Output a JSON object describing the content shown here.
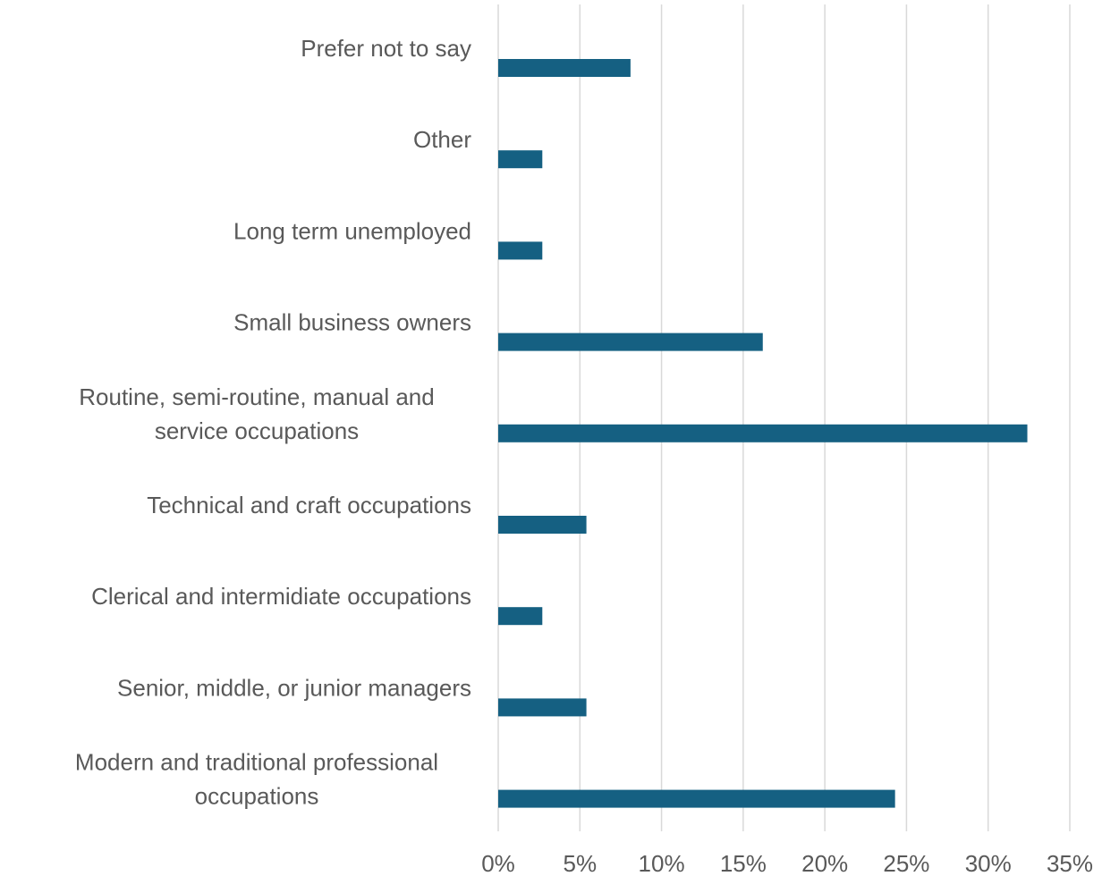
{
  "chart_data": {
    "type": "bar",
    "orientation": "horizontal",
    "categories": [
      "Prefer not to say",
      "Other",
      "Long term unemployed",
      "Small business owners",
      "Routine, semi-routine, manual and service occupations",
      "Technical and craft occupations",
      "Clerical and intermidiate occupations",
      "Senior, middle, or junior managers",
      "Modern and traditional professional occupations"
    ],
    "values": [
      8.1,
      2.7,
      2.7,
      16.2,
      32.4,
      5.4,
      2.7,
      5.4,
      24.3
    ],
    "color": "#156082",
    "xlim": [
      0,
      35
    ],
    "xticks": [
      {
        "value": 0,
        "label": "0%"
      },
      {
        "value": 5,
        "label": "5%"
      },
      {
        "value": 10,
        "label": "10%"
      },
      {
        "value": 15,
        "label": "15%"
      },
      {
        "value": 20,
        "label": "20%"
      },
      {
        "value": 25,
        "label": "25%"
      },
      {
        "value": 30,
        "label": "30%"
      },
      {
        "value": 35,
        "label": "35%"
      }
    ],
    "grid": true
  }
}
